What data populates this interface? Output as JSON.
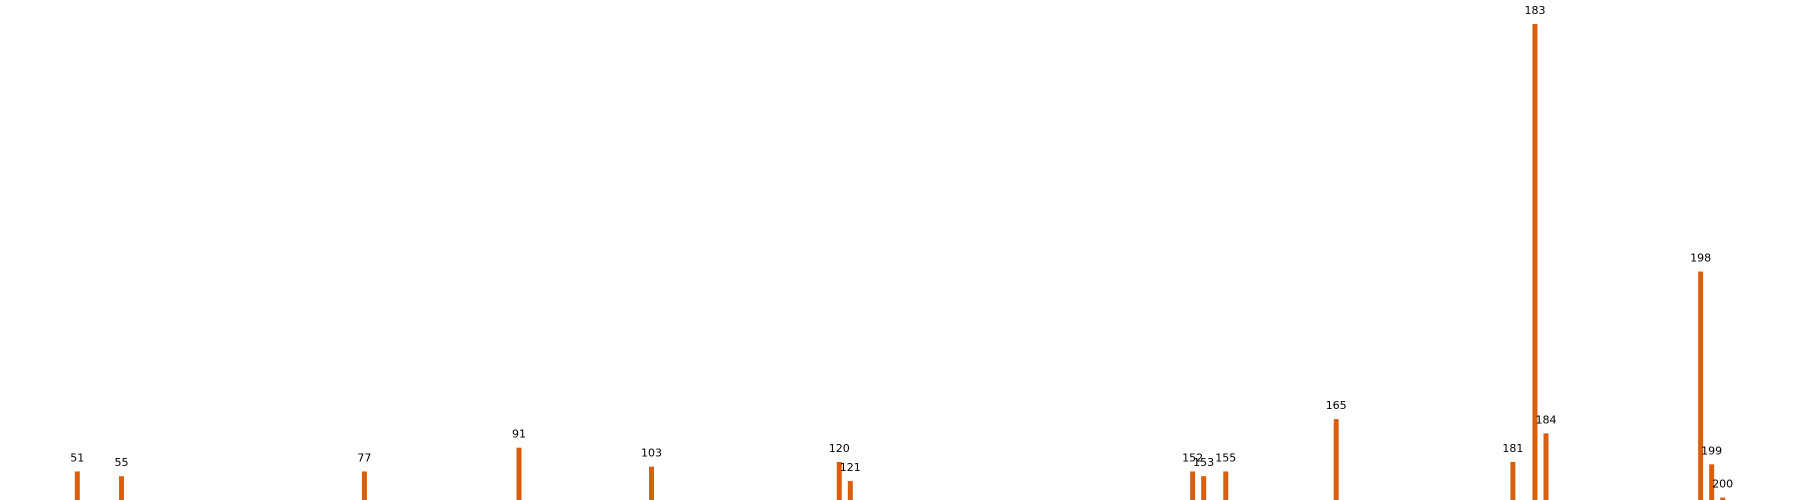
{
  "chart_data": {
    "type": "bar",
    "x": [
      51,
      55,
      77,
      91,
      103,
      120,
      121,
      152,
      153,
      155,
      165,
      181,
      183,
      184,
      198,
      199,
      200
    ],
    "values": [
      6,
      5,
      6,
      11,
      7,
      8,
      4,
      6,
      5,
      6,
      17,
      8,
      100,
      14,
      48,
      7.5,
      0.5
    ],
    "labels": [
      "51",
      "55",
      "77",
      "91",
      "103",
      "120",
      "121",
      "152",
      "153",
      "155",
      "165",
      "181",
      "183",
      "184",
      "198",
      "199",
      "200"
    ],
    "xlim": [
      44,
      207
    ],
    "ylim": [
      0,
      105
    ],
    "title": "",
    "xlabel": "",
    "ylabel": "",
    "axes_visible": false,
    "grid": false,
    "bar_color": "#d95f0e"
  }
}
